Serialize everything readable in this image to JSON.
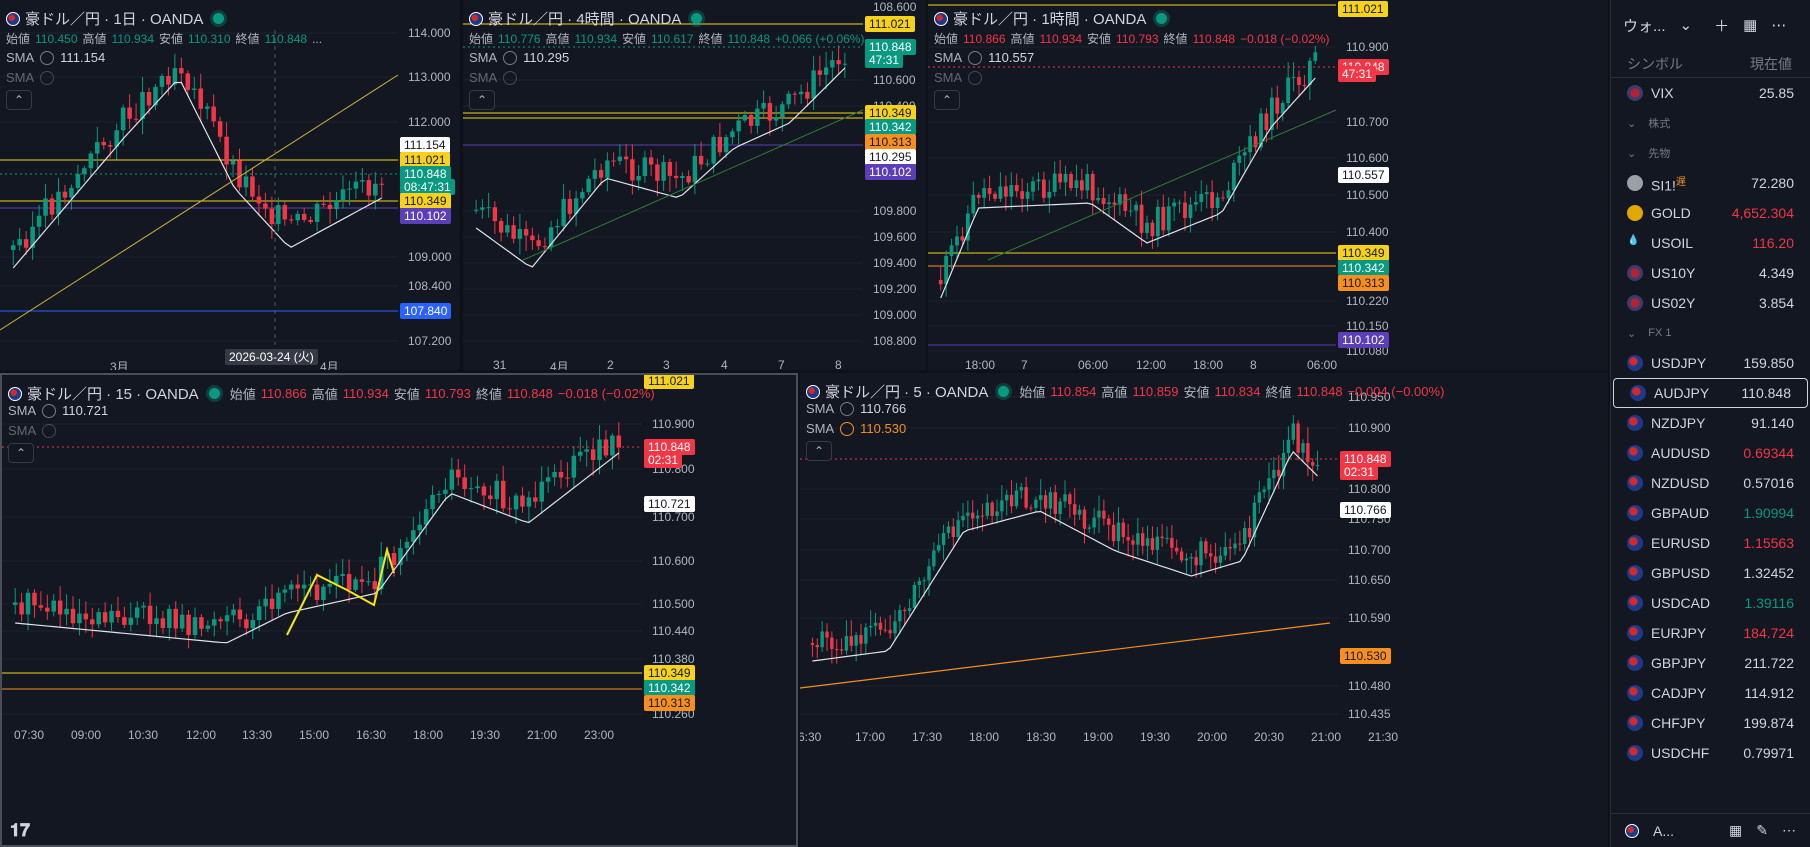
{
  "panes": [
    {
      "id": "daily",
      "symbol": "豪ドル／円 · 1日 · OANDA",
      "ohlc": {
        "o_label": "始値",
        "o": "110.450",
        "h_label": "高値",
        "h": "110.934",
        "l_label": "安値",
        "l": "110.310",
        "c_label": "終値",
        "c": "110.848",
        "extra": "..."
      },
      "sma1": "111.154",
      "time_labels": [
        "3月",
        "4月"
      ],
      "cursor_date": "2026-03-24 (火)",
      "y_labels": [
        "114.000",
        "113.000",
        "112.000",
        "109.000",
        "108.400",
        "107.200"
      ],
      "price_labels": [
        {
          "text": "111.154",
          "kind": "white"
        },
        {
          "text": "111.021",
          "kind": "yellow"
        },
        {
          "text": "110.848",
          "kind": "green"
        },
        {
          "text": "08:47:31",
          "kind": "green"
        },
        {
          "text": "110.349",
          "kind": "yellow"
        },
        {
          "text": "110.102",
          "kind": "purple"
        },
        {
          "text": "107.840",
          "kind": "blue"
        }
      ],
      "color": "up"
    },
    {
      "id": "h4",
      "symbol": "豪ドル／円 · 4時間 · OANDA",
      "ohlc": {
        "o_label": "始値",
        "o": "110.776",
        "h_label": "高値",
        "h": "110.934",
        "l_label": "安値",
        "l": "110.617",
        "c_label": "終値",
        "c": "110.848",
        "chg": "+0.066 (+0.06%)"
      },
      "sma1": "110.295",
      "time_labels": [
        "31",
        "4月",
        "2",
        "3",
        "4",
        "7",
        "8"
      ],
      "y_labels": [
        "110.600",
        "110.400",
        "109.800",
        "109.600",
        "109.400",
        "109.200",
        "109.000",
        "108.800",
        "108.600"
      ],
      "price_labels": [
        {
          "text": "111.021",
          "kind": "yellow"
        },
        {
          "text": "110.848",
          "kind": "green"
        },
        {
          "text": "47:31",
          "kind": "green"
        },
        {
          "text": "110.349",
          "kind": "yellow"
        },
        {
          "text": "110.342",
          "kind": "green"
        },
        {
          "text": "110.313",
          "kind": "orange"
        },
        {
          "text": "110.295",
          "kind": "white"
        },
        {
          "text": "110.102",
          "kind": "purple"
        }
      ],
      "color": "up"
    },
    {
      "id": "h1",
      "symbol": "豪ドル／円 · 1時間 · OANDA",
      "ohlc": {
        "o_label": "始値",
        "o": "110.866",
        "h_label": "高値",
        "h": "110.934",
        "l_label": "安値",
        "l": "110.793",
        "c_label": "終値",
        "c": "110.848",
        "chg": "−0.018 (−0.02%)"
      },
      "sma1": "110.557",
      "time_labels": [
        "18:00",
        "7",
        "06:00",
        "12:00",
        "18:00",
        "8",
        "06:00"
      ],
      "y_labels": [
        "110.900",
        "110.700",
        "110.600",
        "110.500",
        "110.400",
        "110.220",
        "110.150",
        "110.080"
      ],
      "price_labels": [
        {
          "text": "111.021",
          "kind": "yellow"
        },
        {
          "text": "110.848",
          "kind": "red"
        },
        {
          "text": "47:31",
          "kind": "red"
        },
        {
          "text": "110.557",
          "kind": "white"
        },
        {
          "text": "110.349",
          "kind": "yellow"
        },
        {
          "text": "110.342",
          "kind": "green"
        },
        {
          "text": "110.313",
          "kind": "orange"
        },
        {
          "text": "110.102",
          "kind": "purple"
        }
      ],
      "color": "dn"
    },
    {
      "id": "m15",
      "symbol": "豪ドル／円 · 15 · OANDA",
      "ohlc": {
        "o_label": "始値",
        "o": "110.866",
        "h_label": "高値",
        "h": "110.934",
        "l_label": "安値",
        "l": "110.793",
        "c_label": "終値",
        "c": "110.848",
        "chg": "−0.018 (−0.02%)"
      },
      "sma1": "110.721",
      "time_labels": [
        "07:30",
        "09:00",
        "10:30",
        "12:00",
        "13:30",
        "15:00",
        "16:30",
        "18:00",
        "19:30",
        "21:00",
        "23:00"
      ],
      "y_labels": [
        "110.900",
        "110.800",
        "110.700",
        "110.600",
        "110.500",
        "110.440",
        "110.380",
        "110.260"
      ],
      "price_labels": [
        {
          "text": "111.021",
          "kind": "yellow"
        },
        {
          "text": "110.848",
          "kind": "red"
        },
        {
          "text": "02:31",
          "kind": "red"
        },
        {
          "text": "110.721",
          "kind": "white"
        },
        {
          "text": "110.349",
          "kind": "yellow"
        },
        {
          "text": "110.342",
          "kind": "green"
        },
        {
          "text": "110.313",
          "kind": "orange"
        }
      ],
      "color": "dn"
    },
    {
      "id": "m5",
      "symbol": "豪ドル／円 · 5 · OANDA",
      "ohlc": {
        "o_label": "始値",
        "o": "110.854",
        "h_label": "高値",
        "h": "110.859",
        "l_label": "安値",
        "l": "110.834",
        "c_label": "終値",
        "c": "110.848",
        "chg": "−0.004 (−0.00%)"
      },
      "sma1": "110.766",
      "sma2": "110.530",
      "time_labels": [
        "6:30",
        "17:00",
        "17:30",
        "18:00",
        "18:30",
        "19:00",
        "19:30",
        "20:00",
        "20:30",
        "21:00",
        "21:30"
      ],
      "y_labels": [
        "110.950",
        "110.900",
        "110.800",
        "110.750",
        "110.700",
        "110.650",
        "110.590",
        "110.480",
        "110.435"
      ],
      "price_labels": [
        {
          "text": "110.848",
          "kind": "red"
        },
        {
          "text": "02:31",
          "kind": "red"
        },
        {
          "text": "110.766",
          "kind": "white"
        },
        {
          "text": "110.530",
          "kind": "orange"
        }
      ],
      "color": "dn"
    }
  ],
  "sma_label": "SMA",
  "watchlist": {
    "title": "ウォ...",
    "col_symbol": "シンボル",
    "col_price": "現在値",
    "rows": [
      {
        "type": "item",
        "sym": "VIX",
        "price": "25.85",
        "color": "neutral",
        "icon": "us-flag-icon"
      },
      {
        "type": "section",
        "label": "株式"
      },
      {
        "type": "section",
        "label": "先物"
      },
      {
        "type": "item",
        "sym": "SI1!",
        "badge": "遅",
        "price": "72.280",
        "color": "neutral",
        "icon": "silver-icon"
      },
      {
        "type": "item",
        "sym": "GOLD",
        "price": "4,652.304",
        "color": "down",
        "icon": "gold-icon"
      },
      {
        "type": "item",
        "sym": "USOIL",
        "price": "116.20",
        "color": "down",
        "icon": "oil-drop-icon"
      },
      {
        "type": "item",
        "sym": "US10Y",
        "price": "4.349",
        "color": "neutral",
        "icon": "us-flag-icon"
      },
      {
        "type": "item",
        "sym": "US02Y",
        "price": "3.854",
        "color": "neutral",
        "icon": "us-flag-icon"
      },
      {
        "type": "section",
        "label": "FX 1"
      },
      {
        "type": "item",
        "sym": "USDJPY",
        "price": "159.850",
        "color": "neutral",
        "icon": "fx-icon"
      },
      {
        "type": "item",
        "sym": "AUDJPY",
        "price": "110.848",
        "color": "neutral",
        "icon": "fx-icon",
        "selected": true
      },
      {
        "type": "item",
        "sym": "NZDJPY",
        "price": "91.140",
        "color": "neutral",
        "icon": "fx-icon"
      },
      {
        "type": "item",
        "sym": "AUDUSD",
        "price": "0.69344",
        "color": "down",
        "icon": "fx-icon"
      },
      {
        "type": "item",
        "sym": "NZDUSD",
        "price": "0.57016",
        "color": "neutral",
        "icon": "fx-icon"
      },
      {
        "type": "item",
        "sym": "GBPAUD",
        "price": "1.90994",
        "color": "up",
        "icon": "fx-icon"
      },
      {
        "type": "item",
        "sym": "EURUSD",
        "price": "1.15563",
        "color": "down",
        "icon": "fx-icon"
      },
      {
        "type": "item",
        "sym": "GBPUSD",
        "price": "1.32452",
        "color": "neutral",
        "icon": "fx-icon"
      },
      {
        "type": "item",
        "sym": "USDCAD",
        "price": "1.39116",
        "color": "up",
        "icon": "fx-icon"
      },
      {
        "type": "item",
        "sym": "EURJPY",
        "price": "184.724",
        "color": "down",
        "icon": "fx-icon"
      },
      {
        "type": "item",
        "sym": "GBPJPY",
        "price": "211.722",
        "color": "neutral",
        "icon": "fx-icon"
      },
      {
        "type": "item",
        "sym": "CADJPY",
        "price": "114.912",
        "color": "neutral",
        "icon": "fx-icon"
      },
      {
        "type": "item",
        "sym": "CHFJPY",
        "price": "199.874",
        "color": "neutral",
        "icon": "fx-icon"
      },
      {
        "type": "item",
        "sym": "USDCHF",
        "price": "0.79971",
        "color": "neutral",
        "icon": "fx-icon"
      }
    ],
    "footer": "A..."
  },
  "colors": {
    "up": "#089981",
    "down": "#f23645",
    "yellow": "#f7d21a",
    "purple": "#5b3fb8",
    "orange": "#f78f1e",
    "blue": "#2962ff",
    "bg": "#131722"
  }
}
